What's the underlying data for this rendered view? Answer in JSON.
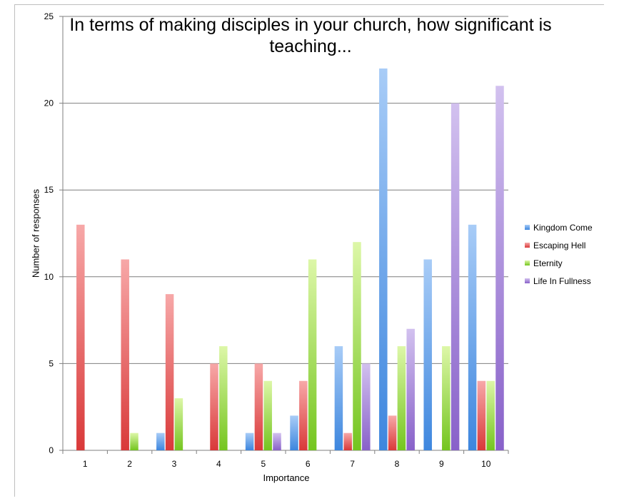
{
  "colors": {
    "series": [
      {
        "light": "#a8ccf7",
        "dark": "#3d86de"
      },
      {
        "light": "#f7a8a8",
        "dark": "#d93939"
      },
      {
        "light": "#ddf7a8",
        "dark": "#74c51f"
      },
      {
        "light": "#d2c1ef",
        "dark": "#8861c9"
      }
    ],
    "gridline": "#7f7f7f",
    "axis": "#7f7f7f"
  },
  "chart_data": {
    "type": "bar",
    "title": "In terms of making disciples in your church, how significant is teaching...",
    "xlabel": "Importance",
    "ylabel": "Number of responses",
    "categories": [
      "1",
      "2",
      "3",
      "4",
      "5",
      "6",
      "7",
      "8",
      "9",
      "10"
    ],
    "ylim": [
      0,
      25
    ],
    "yticks": [
      "0",
      "5",
      "10",
      "15",
      "20",
      "25"
    ],
    "grid": true,
    "legend_position": "right",
    "series": [
      {
        "name": "Kingdom Come",
        "values": [
          0,
          0,
          1,
          0,
          1,
          2,
          6,
          22,
          11,
          13
        ]
      },
      {
        "name": "Escaping Hell",
        "values": [
          13,
          11,
          9,
          5,
          5,
          4,
          1,
          2,
          0,
          4
        ]
      },
      {
        "name": "Eternity",
        "values": [
          0,
          1,
          3,
          6,
          4,
          11,
          12,
          6,
          6,
          4
        ]
      },
      {
        "name": "Life In Fullness",
        "values": [
          0,
          0,
          0,
          0,
          1,
          0,
          5,
          7,
          20,
          21
        ]
      }
    ]
  }
}
